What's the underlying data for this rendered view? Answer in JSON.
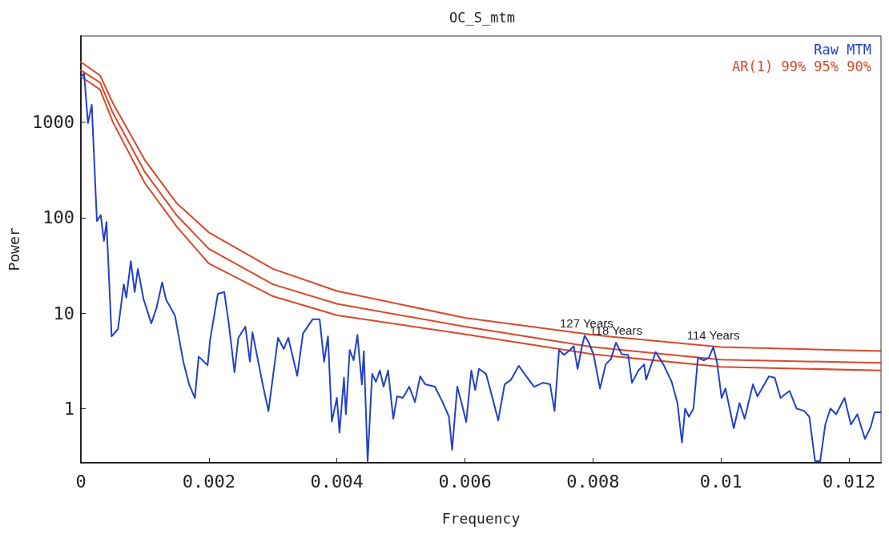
{
  "chart_data": {
    "type": "line",
    "title": "OC_S_mtm",
    "xlabel": "Frequency",
    "ylabel": "Power",
    "xlim": [
      0,
      0.0125
    ],
    "xticks": [
      0,
      0.002,
      0.004,
      0.006,
      0.008,
      0.01,
      0.012
    ],
    "ylim": [
      0.27,
      8000
    ],
    "yticks": [
      1,
      10,
      100,
      1000
    ],
    "log": "y",
    "grid": false,
    "legend": "top right",
    "marker": "none",
    "line_style": "solid",
    "annotations": [
      {
        "text": "127 Years",
        "x": 0.0079,
        "y": 5.8
      },
      {
        "text": "118 Years",
        "x": 0.00836,
        "y": 4.9
      },
      {
        "text": "114 Years",
        "x": 0.00988,
        "y": 4.4
      }
    ],
    "series": [
      {
        "name": "Raw MTM",
        "color": "#2340c8",
        "x": [
          0,
          5e-05,
          0.00011,
          0.00017,
          0.00025,
          0.00031,
          0.00036,
          0.0004,
          0.00048,
          0.00058,
          0.00067,
          0.00071,
          0.00078,
          0.00084,
          0.00089,
          0.00098,
          0.0011,
          0.00118,
          0.00127,
          0.00133,
          0.00147,
          0.0016,
          0.00169,
          0.00178,
          0.00184,
          0.00198,
          0.00202,
          0.00214,
          0.00224,
          0.00231,
          0.0024,
          0.00246,
          0.00257,
          0.00264,
          0.00268,
          0.00284,
          0.00293,
          0.00308,
          0.00317,
          0.00324,
          0.00338,
          0.00347,
          0.00362,
          0.00373,
          0.0038,
          0.00386,
          0.00392,
          0.004,
          0.00404,
          0.00411,
          0.00414,
          0.0042,
          0.00426,
          0.00432,
          0.00439,
          0.00442,
          0.00448,
          0.00455,
          0.00461,
          0.00467,
          0.00473,
          0.0048,
          0.00488,
          0.00494,
          0.00503,
          0.00513,
          0.00522,
          0.0053,
          0.00538,
          0.00553,
          0.00565,
          0.00575,
          0.0058,
          0.00588,
          0.00596,
          0.00602,
          0.0061,
          0.00616,
          0.00622,
          0.00633,
          0.00643,
          0.00652,
          0.00662,
          0.00672,
          0.00684,
          0.00696,
          0.00708,
          0.00722,
          0.00733,
          0.0074,
          0.00747,
          0.00755,
          0.00764,
          0.0077,
          0.00776,
          0.00783,
          0.00787,
          0.00793,
          0.00801,
          0.00811,
          0.0082,
          0.00828,
          0.00836,
          0.00845,
          0.00855,
          0.00861,
          0.00871,
          0.0088,
          0.00883,
          0.00898,
          0.0091,
          0.00923,
          0.00932,
          0.00939,
          0.00944,
          0.0095,
          0.00957,
          0.00964,
          0.00973,
          0.00981,
          0.00988,
          0.00994,
          0.01001,
          0.01007,
          0.0102,
          0.01029,
          0.01037,
          0.0105,
          0.01057,
          0.01075,
          0.01084,
          0.01093,
          0.01107,
          0.01118,
          0.0113,
          0.01138,
          0.01147,
          0.01155,
          0.01163,
          0.01171,
          0.0118,
          0.01193,
          0.01203,
          0.01213,
          0.01225,
          0.01234,
          0.0124,
          0.0125
        ],
        "values": [
          3000,
          3240,
          980,
          1520,
          92,
          106,
          57,
          90,
          5.7,
          6.8,
          20,
          14.5,
          35,
          16.6,
          29,
          13.9,
          7.8,
          11.2,
          21,
          13.9,
          9.4,
          3.1,
          1.8,
          1.29,
          3.5,
          2.84,
          5.3,
          15.9,
          16.6,
          7.8,
          2.4,
          5.5,
          7.2,
          3.1,
          6.3,
          1.8,
          0.94,
          5.5,
          4.2,
          5.5,
          2.2,
          6.1,
          8.6,
          8.6,
          3.1,
          5.7,
          0.73,
          1.29,
          0.56,
          2.1,
          0.87,
          4.1,
          3.2,
          5.9,
          1.79,
          4.0,
          0.28,
          2.3,
          1.9,
          2.5,
          1.69,
          2.5,
          0.78,
          1.34,
          1.29,
          1.69,
          1.17,
          2.17,
          1.79,
          1.69,
          1.17,
          0.82,
          0.37,
          1.69,
          1.06,
          0.72,
          2.5,
          1.56,
          2.6,
          2.3,
          1.29,
          0.75,
          1.79,
          2.0,
          2.8,
          2.17,
          1.69,
          1.86,
          1.79,
          0.94,
          4.1,
          3.65,
          4.1,
          4.5,
          2.6,
          4.5,
          5.8,
          5.0,
          3.65,
          1.62,
          2.9,
          3.3,
          4.9,
          3.7,
          3.65,
          1.86,
          2.5,
          2.9,
          2.0,
          3.9,
          2.9,
          1.9,
          1.14,
          0.44,
          1.0,
          0.82,
          1.0,
          3.4,
          3.2,
          3.4,
          4.4,
          3.0,
          1.29,
          1.62,
          0.62,
          1.14,
          0.78,
          1.79,
          1.34,
          2.17,
          2.1,
          1.29,
          1.53,
          1.0,
          0.94,
          0.82,
          0.28,
          0.28,
          0.68,
          1.0,
          0.87,
          1.29,
          0.68,
          0.87,
          0.48,
          0.64,
          0.91,
          0.91
        ]
      },
      {
        "name": "AR(1) 99% 95% 90%",
        "color": "#d9482b",
        "x": [
          0,
          0.0003,
          0.0005,
          0.001,
          0.0015,
          0.002,
          0.003,
          0.004,
          0.006,
          0.008,
          0.01,
          0.0125
        ],
        "values": [
          4270,
          3090,
          1590,
          400,
          141,
          70,
          29,
          17,
          8.9,
          5.9,
          4.4,
          4.0
        ]
      },
      {
        "color": "#d9482b",
        "x": [
          0,
          0.0003,
          0.0005,
          0.001,
          0.0015,
          0.002,
          0.003,
          0.004,
          0.006,
          0.008,
          0.01,
          0.0125
        ],
        "values": [
          3500,
          2600,
          1250,
          300,
          105,
          47,
          20,
          12.5,
          7.2,
          4.4,
          3.25,
          3.0
        ]
      },
      {
        "color": "#d9482b",
        "x": [
          0,
          0.0003,
          0.0005,
          0.001,
          0.0015,
          0.002,
          0.003,
          0.004,
          0.006,
          0.008,
          0.01,
          0.0125
        ],
        "values": [
          3000,
          2200,
          1000,
          230,
          80,
          33,
          15,
          9.5,
          6.0,
          3.7,
          2.73,
          2.5
        ]
      }
    ]
  }
}
